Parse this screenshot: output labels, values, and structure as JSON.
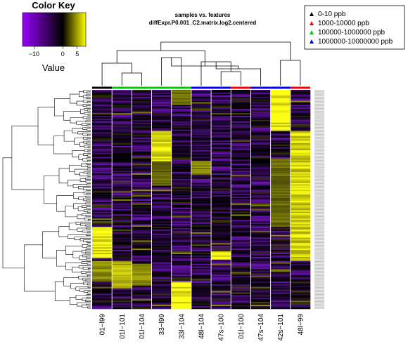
{
  "titles": {
    "line1": "samples vs. features",
    "line2": "diffExpr.P0.001_C2.matrix.log2.centered"
  },
  "color_key": {
    "title": "Color Key",
    "axis_label": "Value",
    "ticks": [
      -10,
      0,
      5
    ],
    "tick_labels": [
      "−10",
      "0",
      "5"
    ],
    "range": [
      -14,
      8
    ],
    "colors": {
      "low": "#9900ff",
      "mid": "#000000",
      "high": "#ffff00"
    }
  },
  "legend": {
    "entries": [
      {
        "label": "0-10 ppb",
        "color": "#000000"
      },
      {
        "label": "1000-10000 ppb",
        "color": "#ff0000"
      },
      {
        "label": "100000-1000000 ppb",
        "color": "#00cc00"
      },
      {
        "label": "1000000-10000000 ppb",
        "color": "#0000ff"
      }
    ]
  },
  "chart_data": {
    "type": "heatmap",
    "columns": [
      "01−l99",
      "01l−101",
      "01l−104",
      "33−l99",
      "33l−104",
      "48l−104",
      "47s−100",
      "01l−100",
      "47s−104",
      "42s−101",
      "48l−99"
    ],
    "column_groups": [
      "#000000",
      "#00cc00",
      "#00cc00",
      "#00cc00",
      "#00cc00",
      "#0000ff",
      "#0000ff",
      "#ff0000",
      "#0000ff",
      "#0000ff",
      "#ff0000"
    ],
    "row_count": 160,
    "value_range": [
      -14,
      8
    ],
    "blocks": [
      {
        "col": 9,
        "rows": [
          0,
          30
        ],
        "value": 7
      },
      {
        "col": 10,
        "rows": [
          30,
          125
        ],
        "value": 6
      },
      {
        "col": 9,
        "rows": [
          50,
          100
        ],
        "value": 3
      },
      {
        "col": 3,
        "rows": [
          30,
          52
        ],
        "value": 6
      },
      {
        "col": 0,
        "rows": [
          100,
          123
        ],
        "value": 7
      },
      {
        "col": 0,
        "rows": [
          125,
          140
        ],
        "value": 4
      },
      {
        "col": 1,
        "rows": [
          125,
          145
        ],
        "value": 5
      },
      {
        "col": 2,
        "rows": [
          128,
          143
        ],
        "value": 4
      },
      {
        "col": 4,
        "rows": [
          140,
          160
        ],
        "value": 7
      },
      {
        "col": 6,
        "rows": [
          118,
          124
        ],
        "value": 7
      },
      {
        "col": 5,
        "rows": [
          52,
          62
        ],
        "value": 4
      },
      {
        "col": 4,
        "rows": [
          0,
          10
        ],
        "value": 3
      },
      {
        "col": 3,
        "rows": [
          52,
          70
        ],
        "value": 3
      }
    ]
  }
}
